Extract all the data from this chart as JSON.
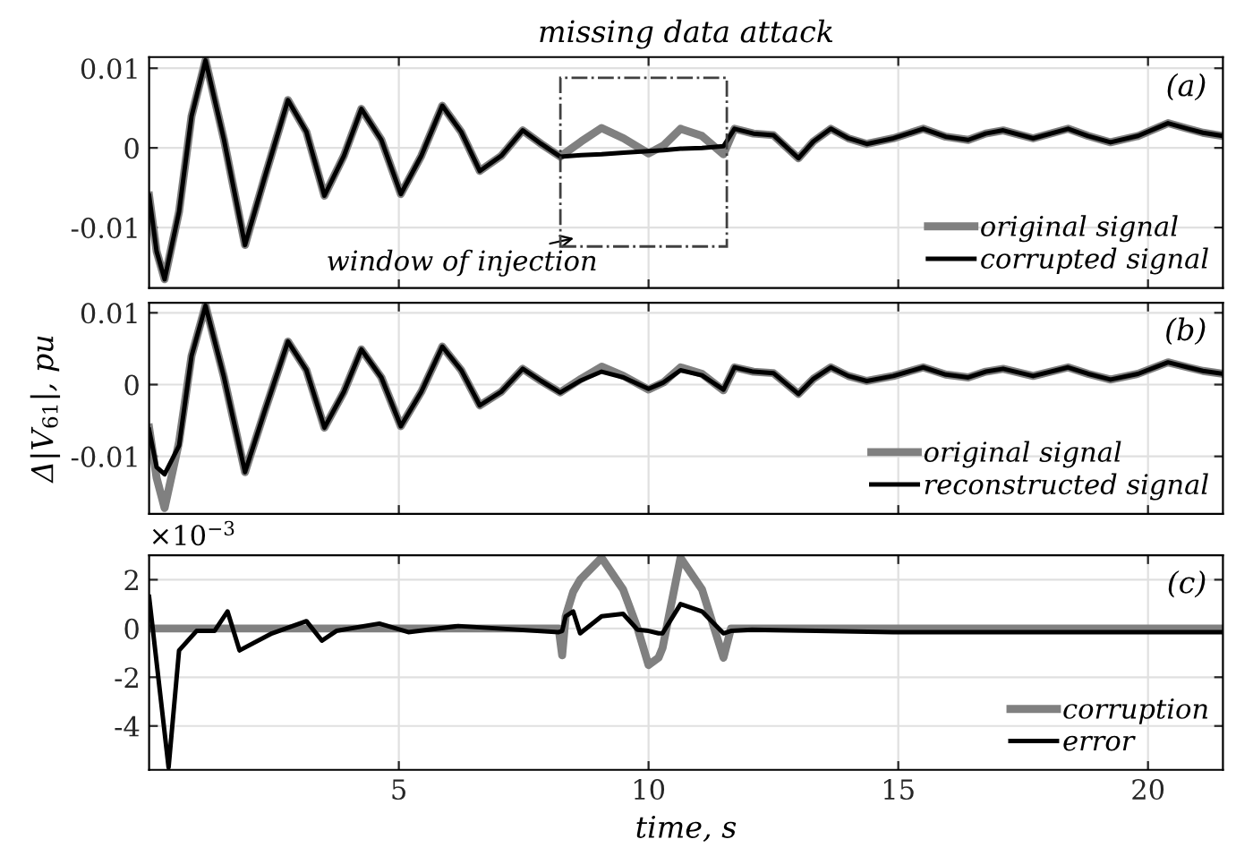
{
  "chart_data": [
    {
      "type": "line",
      "title": "missing data attack",
      "annotations": [
        "(a)",
        "window of injection"
      ],
      "x": [
        0,
        0.15,
        0.31,
        0.6,
        0.85,
        1.13,
        1.5,
        1.92,
        2.3,
        2.78,
        3.15,
        3.51,
        3.9,
        4.25,
        4.65,
        5.04,
        5.45,
        5.87,
        6.25,
        6.62,
        7.05,
        7.48,
        7.85,
        8.23,
        8.65,
        9.06,
        9.5,
        10.0,
        10.3,
        10.64,
        11.07,
        11.5,
        11.72,
        12.1,
        12.5,
        13.0,
        13.3,
        13.65,
        14.0,
        14.37,
        14.9,
        15.5,
        15.95,
        16.4,
        16.75,
        17.1,
        17.7,
        18.4,
        18.8,
        19.25,
        19.8,
        20.4,
        20.8,
        21.1,
        21.5
      ],
      "series": [
        {
          "name": "original signal",
          "color": "#808080",
          "values": [
            -0.006,
            -0.013,
            -0.0165,
            -0.008,
            0.004,
            0.011,
            0.001,
            -0.0122,
            -0.004,
            0.006,
            0.002,
            -0.006,
            -0.001,
            0.0049,
            0.001,
            -0.0058,
            -0.001,
            0.0053,
            0.002,
            -0.0029,
            -0.001,
            0.0022,
            0.0005,
            -0.0011,
            0.0008,
            0.0025,
            0.0012,
            -0.0007,
            0.0003,
            0.0024,
            0.0015,
            -0.0008,
            0.0024,
            0.0018,
            0.0016,
            -0.0013,
            0.0008,
            0.0024,
            0.0012,
            0.0005,
            0.0012,
            0.0024,
            0.0014,
            0.001,
            0.0018,
            0.0022,
            0.0012,
            0.0024,
            0.0015,
            0.0007,
            0.0015,
            0.0031,
            0.0024,
            0.0019,
            0.0015
          ]
        },
        {
          "name": "corrupted signal",
          "color": "#000000",
          "values": [
            -0.006,
            -0.013,
            -0.0165,
            -0.008,
            0.004,
            0.011,
            0.001,
            -0.0122,
            -0.004,
            0.006,
            0.002,
            -0.006,
            -0.001,
            0.0049,
            0.001,
            -0.0058,
            -0.001,
            0.0053,
            0.002,
            -0.0029,
            -0.001,
            0.0022,
            0.0005,
            -0.0011,
            -0.0009,
            -0.0008,
            -0.0006,
            -0.0004,
            -0.0003,
            -0.0001,
            0.0,
            0.0002,
            0.0024,
            0.0018,
            0.0016,
            -0.0013,
            0.0008,
            0.0024,
            0.0012,
            0.0005,
            0.0012,
            0.0024,
            0.0014,
            0.001,
            0.0018,
            0.0022,
            0.0012,
            0.0024,
            0.0015,
            0.0007,
            0.0015,
            0.0031,
            0.0024,
            0.0019,
            0.0015
          ]
        }
      ],
      "xlim": [
        0,
        21.5
      ],
      "xticks": [
        5,
        10,
        15,
        20
      ],
      "ylim": [
        -0.0176,
        0.0114
      ],
      "yticks": [
        -0.01,
        0,
        0.01
      ],
      "grid": true,
      "legend": "bottom right",
      "tick_labels": "y"
    },
    {
      "type": "line",
      "ylabel": "Δ|V$_{61}$|, pu",
      "annotations": [
        "(b)"
      ],
      "x": [
        0,
        0.15,
        0.31,
        0.6,
        0.85,
        1.13,
        1.5,
        1.92,
        2.3,
        2.78,
        3.15,
        3.51,
        3.9,
        4.25,
        4.65,
        5.04,
        5.45,
        5.87,
        6.25,
        6.62,
        7.05,
        7.48,
        7.85,
        8.23,
        8.65,
        9.06,
        9.5,
        10.0,
        10.3,
        10.64,
        11.07,
        11.5,
        11.72,
        12.1,
        12.5,
        13.0,
        13.3,
        13.65,
        14.0,
        14.37,
        14.9,
        15.5,
        15.95,
        16.4,
        16.75,
        17.1,
        17.7,
        18.4,
        18.8,
        19.25,
        19.8,
        20.4,
        20.8,
        21.1,
        21.5
      ],
      "series": [
        {
          "name": "original signal",
          "color": "#808080",
          "values": [
            -0.006,
            -0.013,
            -0.0172,
            -0.008,
            0.004,
            0.011,
            0.001,
            -0.0122,
            -0.004,
            0.006,
            0.002,
            -0.006,
            -0.001,
            0.0049,
            0.001,
            -0.0058,
            -0.001,
            0.0053,
            0.002,
            -0.0029,
            -0.001,
            0.0022,
            0.0005,
            -0.0011,
            0.0008,
            0.0025,
            0.0012,
            -0.0007,
            0.0003,
            0.0024,
            0.0015,
            -0.0008,
            0.0024,
            0.0018,
            0.0016,
            -0.0013,
            0.0008,
            0.0024,
            0.0012,
            0.0005,
            0.0012,
            0.0024,
            0.0014,
            0.001,
            0.0018,
            0.0022,
            0.0012,
            0.0024,
            0.0015,
            0.0007,
            0.0015,
            0.0031,
            0.0024,
            0.0019,
            0.0015
          ]
        },
        {
          "name": "reconstructed signal",
          "color": "#000000",
          "values": [
            -0.0063,
            -0.0115,
            -0.0125,
            -0.0085,
            0.004,
            0.011,
            0.001,
            -0.0122,
            -0.004,
            0.006,
            0.002,
            -0.006,
            -0.001,
            0.0049,
            0.001,
            -0.0058,
            -0.001,
            0.0053,
            0.002,
            -0.0029,
            -0.001,
            0.0022,
            0.0005,
            -0.0011,
            0.0006,
            0.0018,
            0.001,
            -0.0006,
            0.0003,
            0.002,
            0.0013,
            -0.0007,
            0.0024,
            0.0018,
            0.0016,
            -0.0013,
            0.0008,
            0.0024,
            0.0012,
            0.0005,
            0.0012,
            0.0024,
            0.0014,
            0.001,
            0.0018,
            0.0022,
            0.0012,
            0.0024,
            0.0015,
            0.0007,
            0.0015,
            0.0031,
            0.0024,
            0.0019,
            0.0015
          ]
        }
      ],
      "xlim": [
        0,
        21.5
      ],
      "xticks": [
        5,
        10,
        15,
        20
      ],
      "ylim": [
        -0.018,
        0.0114
      ],
      "yticks": [
        -0.01,
        0,
        0.01
      ],
      "grid": true,
      "legend": "bottom right",
      "tick_labels": "y"
    },
    {
      "type": "line",
      "xlabel": "time, s",
      "annotations": [
        "(c)",
        "×10$^{−3}$"
      ],
      "x": [
        0,
        0.39,
        0.6,
        0.95,
        1.31,
        1.57,
        1.81,
        2.46,
        3.15,
        3.46,
        3.75,
        4.61,
        5.19,
        6.19,
        8.2,
        8.27,
        8.34,
        8.49,
        8.63,
        9.06,
        9.49,
        9.78,
        10.0,
        10.2,
        10.28,
        10.64,
        11.07,
        11.5,
        11.65,
        12.07,
        14.9,
        21.5
      ],
      "series": [
        {
          "name": "corruption",
          "color": "#808080",
          "values": [
            0,
            0,
            0,
            0,
            0,
            0,
            0,
            0,
            0,
            0,
            0,
            0,
            0,
            0,
            0,
            -1.1,
            0.5,
            1.5,
            2.0,
            2.9,
            1.6,
            0.0,
            -1.5,
            -1.2,
            -0.8,
            2.9,
            1.6,
            -1.2,
            0,
            0,
            0,
            0
          ]
        },
        {
          "name": "error",
          "color": "#000000",
          "values": [
            1.3,
            -5.7,
            -0.9,
            -0.1,
            -0.1,
            0.7,
            -0.9,
            -0.2,
            0.3,
            -0.5,
            -0.1,
            0.2,
            -0.15,
            0.1,
            -0.15,
            -0.1,
            0.5,
            0.7,
            -0.2,
            0.5,
            0.6,
            -0.05,
            -0.1,
            -0.2,
            -0.2,
            1.0,
            0.7,
            -0.2,
            -0.1,
            -0.05,
            -0.15,
            -0.15
          ]
        }
      ],
      "xlim": [
        0,
        21.5
      ],
      "xticks": [
        5,
        10,
        15,
        20
      ],
      "ylim": [
        -5.8,
        3
      ],
      "yticks": [
        -4,
        -2,
        0,
        2
      ],
      "grid": true,
      "legend": "bottom right"
    }
  ]
}
